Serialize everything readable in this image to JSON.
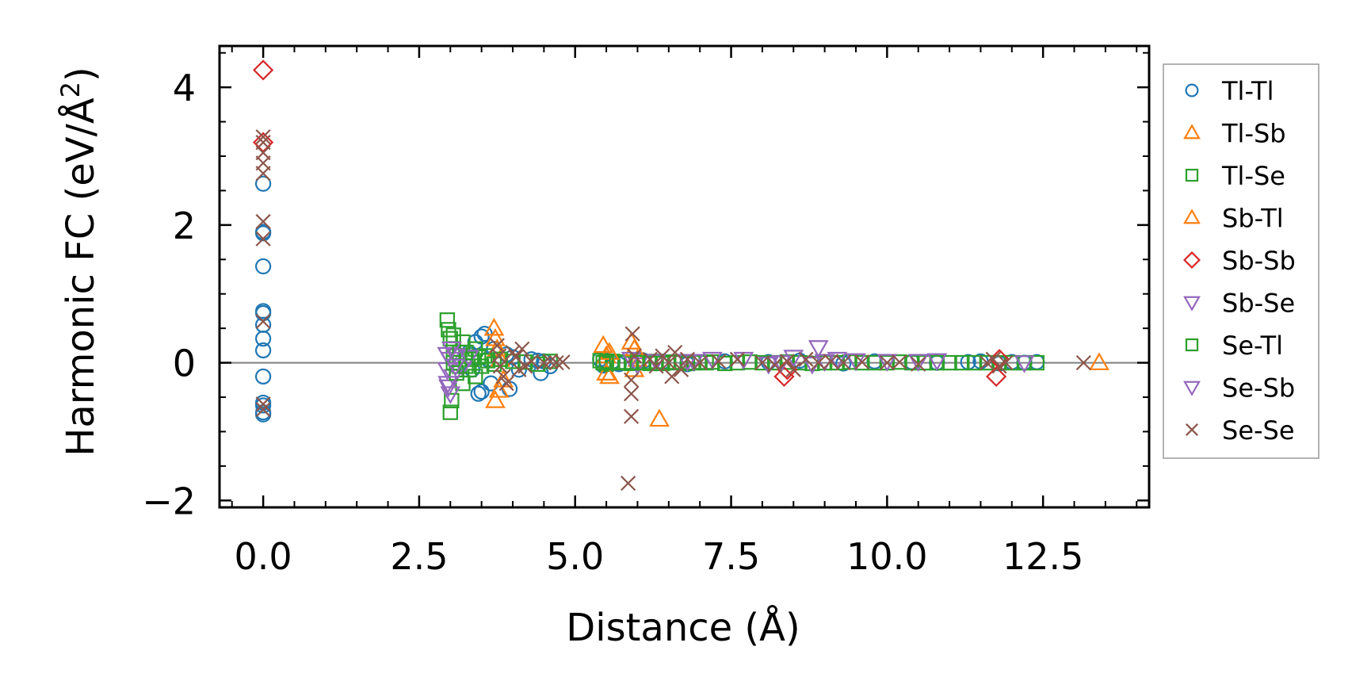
{
  "chart_data": {
    "type": "scatter",
    "title": "",
    "xlabel": "Distance (Å)",
    "ylabel_main": "Harmonic FC (eV/Å",
    "ylabel_sup": "2",
    "ylabel_close": ")",
    "xlim": [
      -0.7,
      14.2
    ],
    "ylim": [
      -2.1,
      4.6
    ],
    "xticks": [
      0.0,
      2.5,
      5.0,
      7.5,
      10.0,
      12.5
    ],
    "xtick_labels": [
      "0.0",
      "2.5",
      "5.0",
      "7.5",
      "10.0",
      "12.5"
    ],
    "yticks": [
      -2,
      0,
      2,
      4
    ],
    "ytick_labels": [
      "−2",
      "0",
      "2",
      "4"
    ],
    "zero_line": true,
    "legend_position": "right-outside-top",
    "series": [
      {
        "name": "Tl-Tl",
        "marker": "circle",
        "color": "#1f77b4",
        "x": [
          0,
          0,
          0,
          0,
          0,
          0,
          0,
          0,
          0,
          0,
          0,
          0,
          0,
          0,
          3.3,
          3.35,
          3.4,
          3.45,
          3.5,
          3.5,
          3.55,
          3.6,
          3.65,
          3.7,
          3.9,
          3.95,
          4.0,
          4.1,
          4.3,
          4.4,
          4.45,
          4.5,
          4.6,
          5.4,
          5.45,
          5.5,
          5.6,
          5.7,
          6.0,
          6.1,
          6.4,
          6.8,
          7.4,
          8.1,
          8.6,
          9.3,
          9.8,
          10.4,
          10.8,
          11.3,
          11.5,
          11.8,
          12.0,
          12.2,
          12.4
        ],
        "y": [
          2.6,
          1.9,
          1.88,
          1.4,
          0.75,
          0.72,
          0.55,
          0.35,
          0.18,
          -0.2,
          -0.58,
          -0.62,
          -0.72,
          -0.75,
          0.15,
          -0.1,
          0.3,
          -0.45,
          0.38,
          -0.42,
          0.42,
          0.05,
          -0.3,
          0.2,
          0.12,
          -0.38,
          0.08,
          -0.1,
          0.05,
          0.03,
          -0.15,
          0.02,
          -0.05,
          0.05,
          -0.04,
          0.03,
          0.02,
          -0.02,
          0.02,
          0.03,
          0.01,
          -0.02,
          0.02,
          0.01,
          0.03,
          -0.01,
          0.02,
          0.01,
          0.0,
          0.01,
          0.02,
          -0.01,
          0.01,
          0.0,
          0.01
        ]
      },
      {
        "name": "Tl-Sb",
        "marker": "triangle-up",
        "color": "#ff7f0e",
        "x": [
          3.7,
          3.72,
          3.75,
          3.8,
          3.85,
          5.45,
          5.5,
          5.55,
          5.9,
          5.95,
          6.0,
          6.35,
          13.4
        ],
        "y": [
          0.5,
          0.35,
          0.2,
          0.05,
          -0.25,
          0.25,
          0.1,
          -0.2,
          0.3,
          -0.1,
          0.05,
          -0.82,
          0.0
        ]
      },
      {
        "name": "Tl-Se",
        "marker": "square",
        "color": "#2ca02c",
        "x": [
          2.95,
          2.97,
          3.0,
          3.0,
          3.02,
          3.05,
          3.05,
          3.1,
          3.15,
          3.2,
          3.2,
          3.25,
          3.3,
          3.35,
          3.4,
          3.4,
          3.45,
          3.5,
          3.55,
          3.6,
          3.7,
          3.8,
          4.0,
          4.2,
          4.4,
          4.6,
          5.4,
          5.5,
          5.6,
          5.7,
          5.8,
          5.9,
          6.0,
          6.1,
          6.2,
          6.3,
          6.4,
          6.5,
          6.6,
          6.7,
          6.8,
          6.9,
          7.0,
          7.1,
          7.2,
          7.4,
          7.6,
          7.8,
          8.0,
          8.2,
          8.4,
          8.6,
          8.8,
          9.0,
          9.2,
          9.4,
          9.6,
          9.8,
          10.0,
          10.2,
          10.4,
          10.6,
          10.8,
          11.0,
          11.2,
          11.4,
          11.6,
          11.8,
          12.0,
          12.2,
          12.4
        ],
        "y": [
          0.62,
          0.48,
          0.35,
          -0.72,
          -0.55,
          0.4,
          0.2,
          0.1,
          -0.05,
          -0.3,
          0.3,
          0.15,
          -0.1,
          0.05,
          0.2,
          -0.2,
          0.08,
          -0.05,
          0.1,
          0.03,
          -0.02,
          0.05,
          0.02,
          0.01,
          -0.02,
          0.02,
          0.03,
          -0.02,
          0.02,
          0.0,
          0.01,
          -0.01,
          0.02,
          0.01,
          0.0,
          0.02,
          -0.01,
          0.01,
          0.0,
          0.01,
          -0.01,
          0.0,
          0.01,
          0.0,
          0.01,
          -0.01,
          0.0,
          0.01,
          0.0,
          0.0,
          0.01,
          0.0,
          -0.01,
          0.0,
          0.0,
          0.01,
          0.0,
          0.0,
          0.0,
          0.01,
          0.0,
          0.0,
          0.0,
          0.0,
          0.0,
          0.0,
          0.0,
          0.0,
          0.0,
          0.0,
          0.0
        ]
      },
      {
        "name": "Sb-Tl",
        "marker": "triangle-up",
        "color": "#ff7f0e",
        "x": [
          3.72,
          3.78,
          5.5,
          5.55,
          5.95
        ],
        "y": [
          -0.55,
          -0.4,
          -0.15,
          0.15,
          0.2
        ]
      },
      {
        "name": "Sb-Sb",
        "marker": "diamond",
        "color": "#d62728",
        "x": [
          0,
          0,
          8.35,
          8.4,
          11.75,
          11.8
        ],
        "y": [
          4.25,
          3.2,
          -0.2,
          -0.1,
          -0.2,
          0.05
        ]
      },
      {
        "name": "Sb-Se",
        "marker": "triangle-down",
        "color": "#9467bd",
        "x": [
          2.95,
          2.95,
          2.97,
          3.0,
          3.0,
          3.05,
          3.1,
          3.2,
          3.3,
          5.9,
          6.0,
          6.3,
          6.8,
          7.2,
          7.7,
          8.3,
          8.5,
          8.8,
          8.9,
          9.2,
          9.5,
          10.0,
          10.5,
          10.8,
          12.2
        ],
        "y": [
          0.12,
          -0.1,
          -0.35,
          -0.45,
          0.05,
          -0.2,
          0.1,
          -0.05,
          0.08,
          0.05,
          -0.03,
          0.02,
          0.02,
          0.05,
          0.05,
          0.0,
          0.08,
          -0.02,
          0.22,
          0.05,
          0.03,
          0.02,
          0.02,
          0.03,
          0.0
        ]
      },
      {
        "name": "Se-Tl",
        "marker": "square",
        "color": "#2ca02c",
        "x": [
          3.05,
          3.1,
          3.15,
          3.25,
          5.45,
          5.5,
          6.0,
          6.2
        ],
        "y": [
          0.0,
          -0.15,
          0.15,
          -0.05,
          0.0,
          0.02,
          0.0,
          -0.01
        ]
      },
      {
        "name": "Se-Sb",
        "marker": "triangle-down",
        "color": "#9467bd",
        "x": [
          2.96,
          3.02,
          3.08,
          6.9,
          8.1,
          9.0
        ],
        "y": [
          -0.3,
          0.2,
          -0.05,
          0.02,
          -0.02,
          0.02
        ]
      },
      {
        "name": "Se-Se",
        "marker": "x",
        "color": "#8c564b",
        "x": [
          0,
          0,
          0,
          0,
          0,
          0,
          0,
          0,
          0,
          0,
          3.75,
          3.78,
          3.8,
          3.85,
          3.9,
          4.0,
          4.05,
          4.1,
          4.15,
          4.2,
          4.3,
          4.5,
          4.6,
          4.7,
          4.8,
          5.85,
          5.9,
          5.9,
          5.9,
          5.92,
          5.95,
          6.2,
          6.3,
          6.4,
          6.5,
          6.55,
          6.6,
          6.7,
          6.8,
          7.0,
          7.3,
          7.6,
          8.0,
          8.2,
          8.4,
          8.5,
          8.7,
          8.9,
          9.1,
          9.3,
          9.6,
          10.0,
          10.2,
          10.5,
          11.6,
          11.7,
          11.8,
          11.9,
          13.15
        ],
        "y": [
          3.28,
          3.2,
          3.05,
          2.9,
          2.75,
          2.05,
          1.8,
          0.6,
          -0.6,
          -0.68,
          0.25,
          0.1,
          -0.05,
          -0.2,
          -0.3,
          0.15,
          0.08,
          -0.1,
          0.2,
          -0.05,
          0.02,
          0.0,
          0.02,
          0.0,
          0.01,
          -1.75,
          -0.78,
          -0.45,
          -0.25,
          0.42,
          0.1,
          0.05,
          -0.05,
          0.1,
          0.0,
          -0.2,
          0.15,
          -0.1,
          0.05,
          0.0,
          0.02,
          0.05,
          0.0,
          -0.03,
          0.02,
          -0.1,
          0.05,
          0.0,
          0.02,
          0.0,
          0.01,
          0.0,
          0.01,
          -0.02,
          0.0,
          0.05,
          -0.05,
          0.0,
          0.0
        ]
      }
    ]
  }
}
